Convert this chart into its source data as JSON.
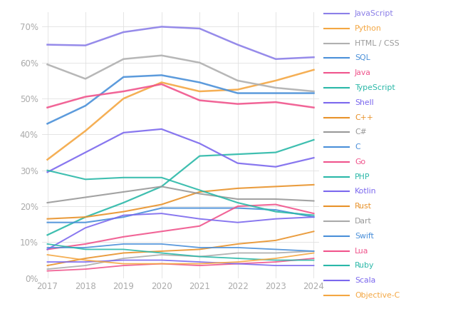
{
  "years": [
    2017,
    2018,
    2019,
    2020,
    2021,
    2022,
    2023,
    2024
  ],
  "series": [
    {
      "name": "JavaScript",
      "color": "#8b7fe8",
      "lw": 1.8,
      "values": [
        65.0,
        64.8,
        68.5,
        70.0,
        69.5,
        65.0,
        61.0,
        61.5
      ]
    },
    {
      "name": "Python",
      "color": "#f4a742",
      "lw": 1.8,
      "values": [
        33.0,
        41.0,
        50.0,
        54.5,
        52.0,
        52.5,
        55.0,
        58.0
      ]
    },
    {
      "name": "HTML / CSS",
      "color": "#b0b0b0",
      "lw": 1.8,
      "values": [
        59.5,
        55.5,
        61.0,
        62.0,
        60.0,
        55.0,
        53.0,
        52.0
      ]
    },
    {
      "name": "SQL",
      "color": "#4a90d9",
      "lw": 1.8,
      "values": [
        43.0,
        48.0,
        56.0,
        56.5,
        54.5,
        51.5,
        51.5,
        51.5
      ]
    },
    {
      "name": "Java",
      "color": "#f0548c",
      "lw": 1.8,
      "values": [
        47.5,
        50.5,
        52.0,
        54.0,
        49.5,
        48.5,
        49.0,
        47.5
      ]
    },
    {
      "name": "TypeScript",
      "color": "#2ab8a8",
      "lw": 1.6,
      "values": [
        12.0,
        17.0,
        21.0,
        25.5,
        34.0,
        34.5,
        35.0,
        38.5
      ]
    },
    {
      "name": "Shell",
      "color": "#7b68ee",
      "lw": 1.6,
      "values": [
        29.5,
        35.0,
        40.5,
        41.5,
        37.5,
        32.0,
        31.0,
        33.5
      ]
    },
    {
      "name": "C++",
      "color": "#e8922a",
      "lw": 1.5,
      "values": [
        16.5,
        17.0,
        18.5,
        20.5,
        24.0,
        25.0,
        25.5,
        26.0
      ]
    },
    {
      "name": "C#",
      "color": "#999999",
      "lw": 1.5,
      "values": [
        21.0,
        22.5,
        24.0,
        25.5,
        23.5,
        22.0,
        22.0,
        21.5
      ]
    },
    {
      "name": "C",
      "color": "#4a8fd9",
      "lw": 1.5,
      "values": [
        15.5,
        15.5,
        17.0,
        19.5,
        19.5,
        19.5,
        19.0,
        17.0
      ]
    },
    {
      "name": "Go",
      "color": "#f0548c",
      "lw": 1.5,
      "values": [
        8.0,
        9.5,
        11.5,
        13.0,
        14.5,
        20.0,
        20.5,
        18.0
      ]
    },
    {
      "name": "PHP",
      "color": "#2ab8a8",
      "lw": 1.5,
      "values": [
        30.0,
        27.5,
        28.0,
        28.0,
        24.5,
        21.0,
        18.5,
        17.5
      ]
    },
    {
      "name": "Kotlin",
      "color": "#7b68ee",
      "lw": 1.4,
      "values": [
        8.0,
        14.0,
        17.5,
        18.0,
        16.5,
        15.5,
        16.5,
        17.0
      ]
    },
    {
      "name": "Rust",
      "color": "#e8922a",
      "lw": 1.4,
      "values": [
        3.5,
        5.5,
        7.0,
        7.5,
        8.0,
        9.5,
        10.5,
        13.0
      ]
    },
    {
      "name": "Dart",
      "color": "#aaaaaa",
      "lw": 1.3,
      "values": [
        2.5,
        3.5,
        5.5,
        6.5,
        6.0,
        7.0,
        7.0,
        7.5
      ]
    },
    {
      "name": "Swift",
      "color": "#4a8fd9",
      "lw": 1.3,
      "values": [
        8.5,
        8.5,
        9.5,
        9.5,
        8.5,
        8.5,
        8.0,
        7.5
      ]
    },
    {
      "name": "Lua",
      "color": "#f0548c",
      "lw": 1.3,
      "values": [
        2.0,
        2.5,
        3.5,
        4.0,
        3.5,
        4.0,
        4.5,
        5.5
      ]
    },
    {
      "name": "Ruby",
      "color": "#2ab8a8",
      "lw": 1.3,
      "values": [
        9.5,
        8.0,
        8.0,
        7.0,
        6.0,
        5.5,
        5.0,
        5.0
      ]
    },
    {
      "name": "Scala",
      "color": "#7b68ee",
      "lw": 1.3,
      "values": [
        4.5,
        4.5,
        5.0,
        5.0,
        4.5,
        4.0,
        3.5,
        3.5
      ]
    },
    {
      "name": "Objective-C",
      "color": "#f4a742",
      "lw": 1.3,
      "values": [
        6.5,
        5.0,
        4.0,
        4.0,
        4.0,
        4.5,
        5.5,
        7.0
      ]
    }
  ],
  "legend_text_colors": {
    "JavaScript": "#8b7fe8",
    "Python": "#f4a742",
    "HTML / CSS": "#999999",
    "SQL": "#4a90d9",
    "Java": "#f0548c",
    "TypeScript": "#2ab8a8",
    "Shell": "#7b68ee",
    "C++": "#e8922a",
    "C#": "#999999",
    "C": "#4a8fd9",
    "Go": "#f0548c",
    "PHP": "#2ab8a8",
    "Kotlin": "#7b68ee",
    "Rust": "#e8922a",
    "Dart": "#999999",
    "Swift": "#4a8fd9",
    "Lua": "#f0548c",
    "Ruby": "#2ab8a8",
    "Scala": "#7b68ee",
    "Objective-C": "#f4a742"
  },
  "background_color": "#ffffff",
  "grid_color": "#e0e0e0",
  "ylim": [
    0,
    74
  ],
  "yticks": [
    0,
    10,
    20,
    30,
    40,
    50,
    60,
    70
  ]
}
